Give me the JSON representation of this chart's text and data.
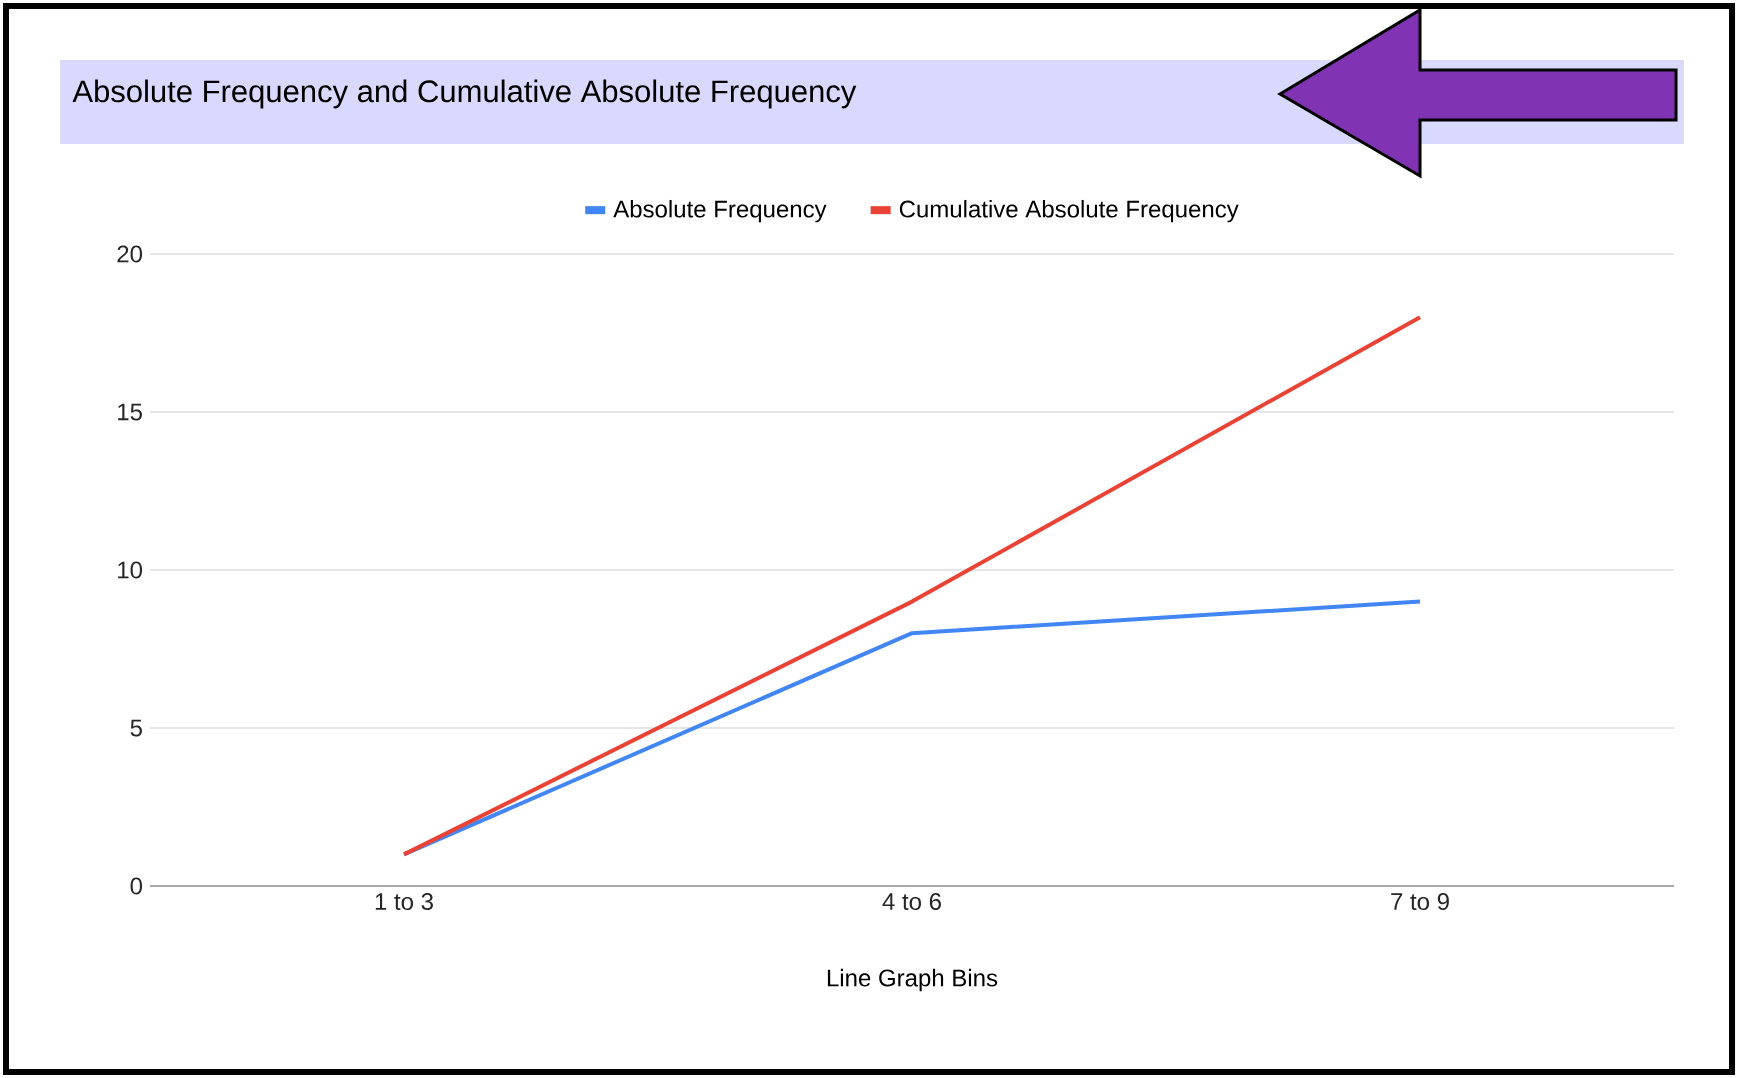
{
  "chart_data": {
    "type": "line",
    "title": "Absolute Frequency and Cumulative Absolute Frequency",
    "xlabel": "Line Graph Bins",
    "categories": [
      "1 to 3",
      "4 to 6",
      "7 to 9"
    ],
    "series": [
      {
        "name": "Absolute Frequency",
        "color": "#4285f4",
        "values": [
          1,
          8,
          9
        ]
      },
      {
        "name": "Cumulative Absolute Frequency",
        "color": "#ea4335",
        "values": [
          1,
          9,
          18
        ]
      }
    ],
    "ylim": [
      0,
      20
    ],
    "yticks": [
      0,
      5,
      10,
      15,
      20
    ],
    "grid": "y",
    "legend": "top",
    "marker": "none",
    "line_style": "solid"
  }
}
